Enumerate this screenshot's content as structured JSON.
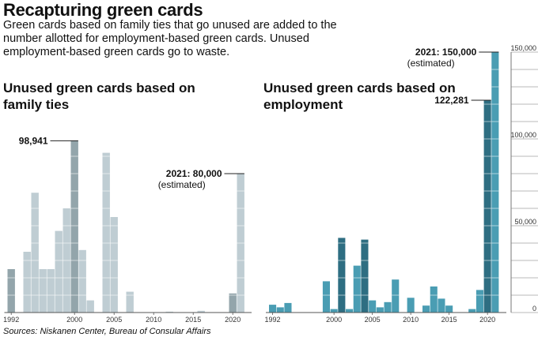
{
  "header": {
    "title": "Recapturing green cards",
    "subtitle": "Green cards based on family ties that go unused are added to the number allotted for employment-based green cards. Unused employment-based green cards go to waste.",
    "source": "Sources: Niskanen Center, Bureau of Consular Affairs"
  },
  "colors": {
    "family_light": "#bfcdd3",
    "family_dark": "#93a5ab",
    "employment_light": "#4a9db3",
    "employment_dark": "#2e6e82",
    "axis": "#555555"
  },
  "chart_data": [
    {
      "type": "bar",
      "title": "Unused green cards based on family ties",
      "x": [
        1992,
        1993,
        1994,
        1995,
        1996,
        1997,
        1998,
        1999,
        2000,
        2001,
        2002,
        2003,
        2004,
        2005,
        2006,
        2007,
        2008,
        2009,
        2010,
        2011,
        2012,
        2013,
        2014,
        2015,
        2016,
        2017,
        2018,
        2019,
        2020,
        2021
      ],
      "values": [
        25000,
        0,
        35000,
        69000,
        25000,
        25000,
        47000,
        60000,
        98941,
        36000,
        7000,
        0,
        92000,
        55000,
        0,
        12000,
        0,
        0,
        0,
        0,
        500,
        0,
        0,
        0,
        1000,
        0,
        0,
        0,
        11000,
        80000
      ],
      "x_tick_labels": [
        "1992",
        "2000",
        "2005",
        "2010",
        "2015",
        "2020"
      ],
      "ylim": [
        0,
        150000
      ],
      "annotations": [
        {
          "year": 2000,
          "label": "98,941",
          "sub": ""
        },
        {
          "year": 2021,
          "label": "2021: 80,000",
          "sub": "(estimated)"
        }
      ]
    },
    {
      "type": "bar",
      "title": "Unused green cards based on employment",
      "x": [
        1992,
        1993,
        1994,
        1995,
        1996,
        1997,
        1998,
        1999,
        2000,
        2001,
        2002,
        2003,
        2004,
        2005,
        2006,
        2007,
        2008,
        2009,
        2010,
        2011,
        2012,
        2013,
        2014,
        2015,
        2016,
        2017,
        2018,
        2019,
        2020,
        2021
      ],
      "values": [
        4500,
        3000,
        5500,
        0,
        0,
        0,
        0,
        18000,
        2000,
        43000,
        2000,
        27000,
        42000,
        7000,
        3000,
        6000,
        19000,
        0,
        8500,
        0,
        4000,
        15000,
        8000,
        4000,
        0,
        0,
        2000,
        13000,
        122281,
        150000
      ],
      "x_tick_labels": [
        "1992",
        "2000",
        "2005",
        "2010",
        "2015",
        "2020"
      ],
      "ylim": [
        0,
        150000
      ],
      "y_tick_labels": [
        "150,000",
        "100,000",
        "50,000",
        "0"
      ],
      "annotations": [
        {
          "year": 2020,
          "label": "122,281",
          "sub": ""
        },
        {
          "year": 2021,
          "label": "2021: 150,000",
          "sub": "(estimated)"
        }
      ]
    }
  ]
}
